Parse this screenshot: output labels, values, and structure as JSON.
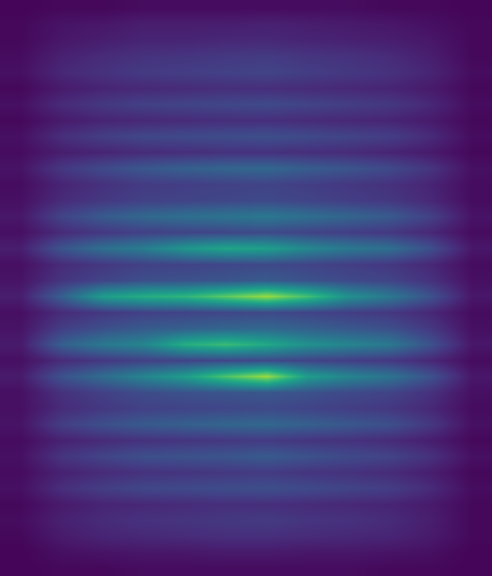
{
  "chart_data": {
    "type": "heatmap",
    "color": "Viridis",
    "tick_labels": false,
    "zlim": [
      0,
      1
    ],
    "z": [
      [
        0.01,
        0.02,
        0.02,
        0.03,
        0.03,
        0.03,
        0.03,
        0.03,
        0.03,
        0.02,
        0.02,
        0.01
      ],
      [
        0.02,
        0.05,
        0.06,
        0.08,
        0.08,
        0.08,
        0.09,
        0.08,
        0.07,
        0.06,
        0.04,
        0.02
      ],
      [
        0.02,
        0.06,
        0.08,
        0.1,
        0.1,
        0.11,
        0.11,
        0.1,
        0.09,
        0.08,
        0.06,
        0.02
      ],
      [
        0.03,
        0.09,
        0.12,
        0.14,
        0.15,
        0.16,
        0.17,
        0.15,
        0.14,
        0.12,
        0.08,
        0.02
      ],
      [
        0.04,
        0.11,
        0.14,
        0.17,
        0.18,
        0.19,
        0.2,
        0.18,
        0.16,
        0.14,
        0.1,
        0.03
      ],
      [
        0.02,
        0.07,
        0.1,
        0.11,
        0.12,
        0.13,
        0.13,
        0.12,
        0.11,
        0.1,
        0.07,
        0.02
      ],
      [
        0.04,
        0.12,
        0.16,
        0.19,
        0.2,
        0.21,
        0.22,
        0.2,
        0.18,
        0.16,
        0.11,
        0.03
      ],
      [
        0.02,
        0.07,
        0.1,
        0.11,
        0.12,
        0.13,
        0.13,
        0.12,
        0.11,
        0.1,
        0.07,
        0.02
      ],
      [
        0.04,
        0.13,
        0.18,
        0.21,
        0.22,
        0.23,
        0.24,
        0.22,
        0.2,
        0.18,
        0.12,
        0.03
      ],
      [
        0.03,
        0.08,
        0.1,
        0.12,
        0.13,
        0.14,
        0.14,
        0.13,
        0.12,
        0.1,
        0.07,
        0.02
      ],
      [
        0.05,
        0.16,
        0.22,
        0.27,
        0.3,
        0.32,
        0.33,
        0.29,
        0.26,
        0.22,
        0.15,
        0.04
      ],
      [
        0.03,
        0.1,
        0.14,
        0.17,
        0.18,
        0.19,
        0.2,
        0.18,
        0.16,
        0.14,
        0.1,
        0.03
      ],
      [
        0.04,
        0.12,
        0.16,
        0.19,
        0.2,
        0.21,
        0.22,
        0.2,
        0.18,
        0.16,
        0.11,
        0.03
      ],
      [
        0.06,
        0.2,
        0.28,
        0.33,
        0.36,
        0.38,
        0.4,
        0.36,
        0.32,
        0.28,
        0.19,
        0.05
      ],
      [
        0.04,
        0.12,
        0.16,
        0.19,
        0.2,
        0.21,
        0.22,
        0.2,
        0.18,
        0.16,
        0.11,
        0.03
      ],
      [
        0.08,
        0.26,
        0.36,
        0.42,
        0.52,
        0.58,
        0.56,
        0.46,
        0.4,
        0.36,
        0.24,
        0.06
      ],
      [
        0.04,
        0.12,
        0.16,
        0.19,
        0.2,
        0.21,
        0.22,
        0.2,
        0.18,
        0.16,
        0.11,
        0.03
      ],
      [
        0.05,
        0.15,
        0.2,
        0.24,
        0.25,
        0.26,
        0.28,
        0.25,
        0.22,
        0.2,
        0.14,
        0.04
      ],
      [
        0.08,
        0.3,
        0.55,
        0.62,
        0.65,
        0.75,
        0.85,
        0.7,
        0.5,
        0.4,
        0.25,
        0.06
      ],
      [
        0.04,
        0.12,
        0.16,
        0.19,
        0.2,
        0.21,
        0.22,
        0.2,
        0.18,
        0.16,
        0.11,
        0.03
      ],
      [
        0.05,
        0.18,
        0.24,
        0.28,
        0.3,
        0.32,
        0.33,
        0.3,
        0.27,
        0.24,
        0.16,
        0.04
      ],
      [
        0.07,
        0.3,
        0.4,
        0.45,
        0.62,
        0.68,
        0.6,
        0.5,
        0.45,
        0.4,
        0.25,
        0.06
      ],
      [
        0.04,
        0.12,
        0.16,
        0.19,
        0.2,
        0.21,
        0.22,
        0.2,
        0.18,
        0.16,
        0.11,
        0.03
      ],
      [
        0.07,
        0.25,
        0.35,
        0.45,
        0.55,
        0.72,
        0.85,
        0.55,
        0.45,
        0.38,
        0.25,
        0.06
      ],
      [
        0.04,
        0.14,
        0.19,
        0.23,
        0.25,
        0.26,
        0.27,
        0.25,
        0.22,
        0.2,
        0.14,
        0.04
      ],
      [
        0.04,
        0.12,
        0.16,
        0.19,
        0.2,
        0.21,
        0.22,
        0.2,
        0.18,
        0.16,
        0.11,
        0.03
      ],
      [
        0.05,
        0.18,
        0.24,
        0.28,
        0.3,
        0.32,
        0.33,
        0.3,
        0.27,
        0.24,
        0.16,
        0.04
      ],
      [
        0.03,
        0.09,
        0.12,
        0.14,
        0.15,
        0.16,
        0.17,
        0.15,
        0.14,
        0.12,
        0.08,
        0.02
      ],
      [
        0.04,
        0.15,
        0.2,
        0.24,
        0.25,
        0.26,
        0.28,
        0.25,
        0.22,
        0.2,
        0.14,
        0.04
      ],
      [
        0.03,
        0.09,
        0.12,
        0.14,
        0.15,
        0.16,
        0.17,
        0.15,
        0.14,
        0.12,
        0.08,
        0.02
      ],
      [
        0.04,
        0.13,
        0.18,
        0.21,
        0.22,
        0.23,
        0.24,
        0.22,
        0.2,
        0.18,
        0.12,
        0.03
      ],
      [
        0.02,
        0.07,
        0.1,
        0.11,
        0.12,
        0.13,
        0.13,
        0.12,
        0.11,
        0.1,
        0.07,
        0.02
      ],
      [
        0.03,
        0.09,
        0.12,
        0.14,
        0.15,
        0.16,
        0.17,
        0.15,
        0.14,
        0.12,
        0.08,
        0.02
      ],
      [
        0.02,
        0.07,
        0.1,
        0.11,
        0.12,
        0.13,
        0.13,
        0.12,
        0.11,
        0.1,
        0.07,
        0.02
      ],
      [
        0.01,
        0.04,
        0.05,
        0.06,
        0.06,
        0.07,
        0.07,
        0.06,
        0.06,
        0.05,
        0.04,
        0.01
      ],
      [
        0.01,
        0.02,
        0.02,
        0.03,
        0.03,
        0.03,
        0.03,
        0.03,
        0.03,
        0.02,
        0.02,
        0.01
      ]
    ]
  }
}
